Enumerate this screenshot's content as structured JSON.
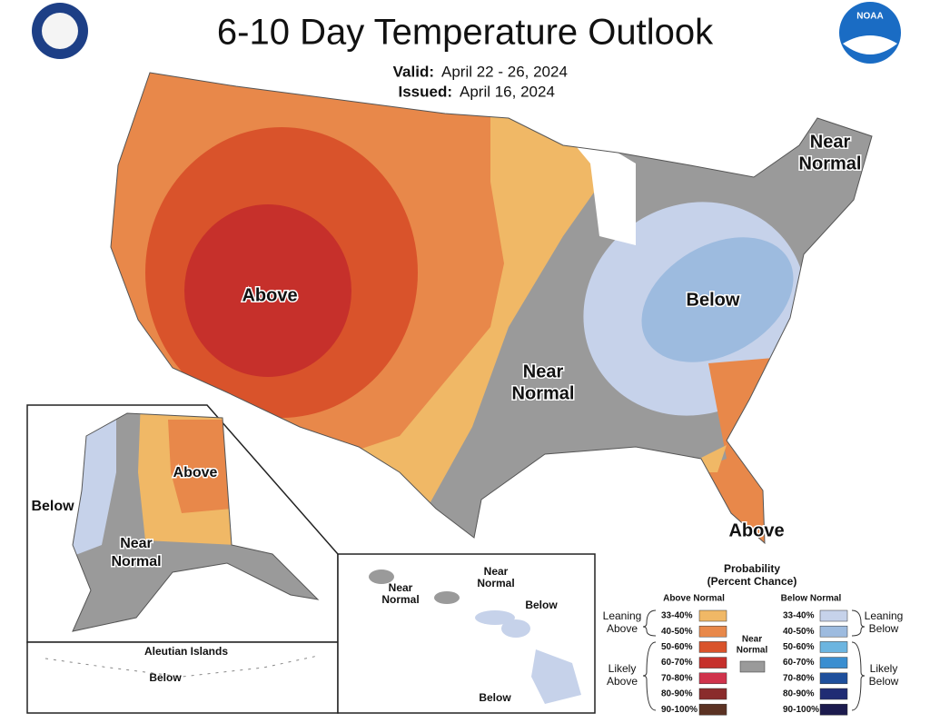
{
  "header": {
    "title": "6-10 Day Temperature Outlook",
    "valid_label": "Valid:",
    "valid_dates": "April 22 - 26, 2024",
    "issued_label": "Issued:",
    "issued_date": "April 16, 2024",
    "logo_text": "NOAA"
  },
  "conus_labels": [
    {
      "lines": [
        "Above"
      ]
    },
    {
      "lines": [
        "Near",
        "Normal"
      ]
    },
    {
      "lines": [
        "Below"
      ]
    },
    {
      "lines": [
        "Near",
        "Normal"
      ]
    },
    {
      "lines": [
        "Above"
      ]
    }
  ],
  "alaska_labels": [
    {
      "lines": [
        "Above"
      ]
    },
    {
      "lines": [
        "Below"
      ]
    },
    {
      "lines": [
        "Near",
        "Normal"
      ]
    }
  ],
  "aleutian": {
    "title": "Aleutian Islands",
    "label": "Below"
  },
  "hawaii_labels": [
    {
      "lines": [
        "Near",
        "Normal"
      ]
    },
    {
      "lines": [
        "Near",
        "Normal"
      ]
    },
    {
      "lines": [
        "Below"
      ]
    },
    {
      "lines": [
        "Below"
      ]
    }
  ],
  "legend": {
    "title": [
      "Probability",
      "(Percent Chance)"
    ],
    "above_header": "Above Normal",
    "below_header": "Below Normal",
    "near_normal": {
      "lines": [
        "Near",
        "Normal"
      ],
      "color": "#9a9a9a"
    },
    "leaning_above": [
      "Leaning",
      "Above"
    ],
    "likely_above": [
      "Likely",
      "Above"
    ],
    "leaning_below": [
      "Leaning",
      "Below"
    ],
    "likely_below": [
      "Likely",
      "Below"
    ],
    "above": [
      {
        "range": "33-40%",
        "color": "#f0b866"
      },
      {
        "range": "40-50%",
        "color": "#e8884a"
      },
      {
        "range": "50-60%",
        "color": "#d9532b"
      },
      {
        "range": "60-70%",
        "color": "#c6302b"
      },
      {
        "range": "70-80%",
        "color": "#d0334c"
      },
      {
        "range": "80-90%",
        "color": "#8a2c2c"
      },
      {
        "range": "90-100%",
        "color": "#5b3223"
      }
    ],
    "below": [
      {
        "range": "33-40%",
        "color": "#c6d2ea"
      },
      {
        "range": "40-50%",
        "color": "#9dbbdf"
      },
      {
        "range": "50-60%",
        "color": "#6cb5e0"
      },
      {
        "range": "60-70%",
        "color": "#3a8ed0"
      },
      {
        "range": "70-80%",
        "color": "#1e4f9c"
      },
      {
        "range": "80-90%",
        "color": "#202c74"
      },
      {
        "range": "90-100%",
        "color": "#1c1b4e"
      }
    ]
  }
}
